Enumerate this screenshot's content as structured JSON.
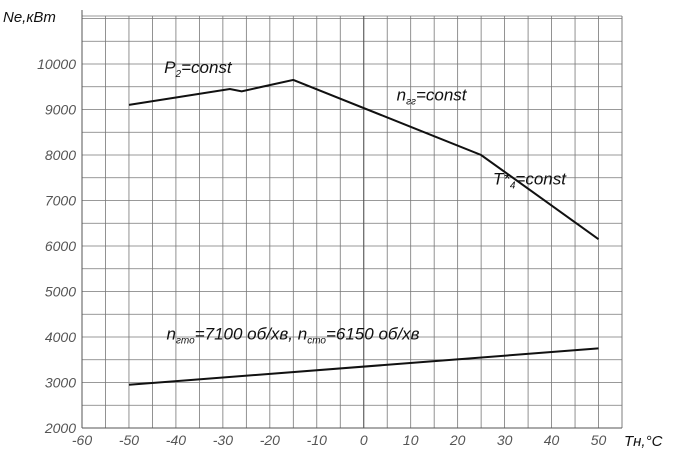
{
  "chart_data": {
    "type": "line",
    "ylabel": "Ne,кВт",
    "xlabel": "Tн,°C",
    "xlim": [
      -60,
      50
    ],
    "ylim": [
      2000,
      10000
    ],
    "xticks": [
      -60,
      -50,
      -40,
      -30,
      -20,
      -10,
      0,
      10,
      20,
      30,
      40,
      50
    ],
    "yticks": [
      2000,
      3000,
      4000,
      5000,
      6000,
      7000,
      8000,
      9000,
      10000
    ],
    "grid": true,
    "series": [
      {
        "name": "",
        "x": [
          -50,
          -28.5,
          -26,
          -15,
          25,
          50
        ],
        "y": [
          9100,
          9450,
          9400,
          9650,
          8000,
          6150
        ]
      },
      {
        "name": "",
        "x": [
          -50,
          50
        ],
        "y": [
          2950,
          3750
        ]
      }
    ],
    "annotations": [
      {
        "x": -42.5,
        "y": 9800,
        "parts": [
          {
            "t": "P",
            "sub": false
          },
          {
            "t": "2",
            "sub": true
          },
          {
            "t": "=const",
            "sub": false
          }
        ]
      },
      {
        "x": 7,
        "y": 9200,
        "parts": [
          {
            "t": "n",
            "sub": false
          },
          {
            "t": "гг",
            "sub": true
          },
          {
            "t": "=const",
            "sub": false
          }
        ]
      },
      {
        "x": 27.5,
        "y": 7350,
        "parts": [
          {
            "t": "T*",
            "sub": false
          },
          {
            "t": "4",
            "sub": true
          },
          {
            "t": "=const",
            "sub": false
          }
        ]
      },
      {
        "x": -42,
        "y": 3950,
        "parts": [
          {
            "t": "n",
            "sub": false
          },
          {
            "t": "гто",
            "sub": true
          },
          {
            "t": "=7100 об/хв, n",
            "sub": false
          },
          {
            "t": "сто",
            "sub": true
          },
          {
            "t": "=6150 об/хв",
            "sub": false
          }
        ]
      }
    ],
    "colors": {
      "line": "#111111",
      "grid": "#777777",
      "tick_text": "#555555"
    }
  }
}
